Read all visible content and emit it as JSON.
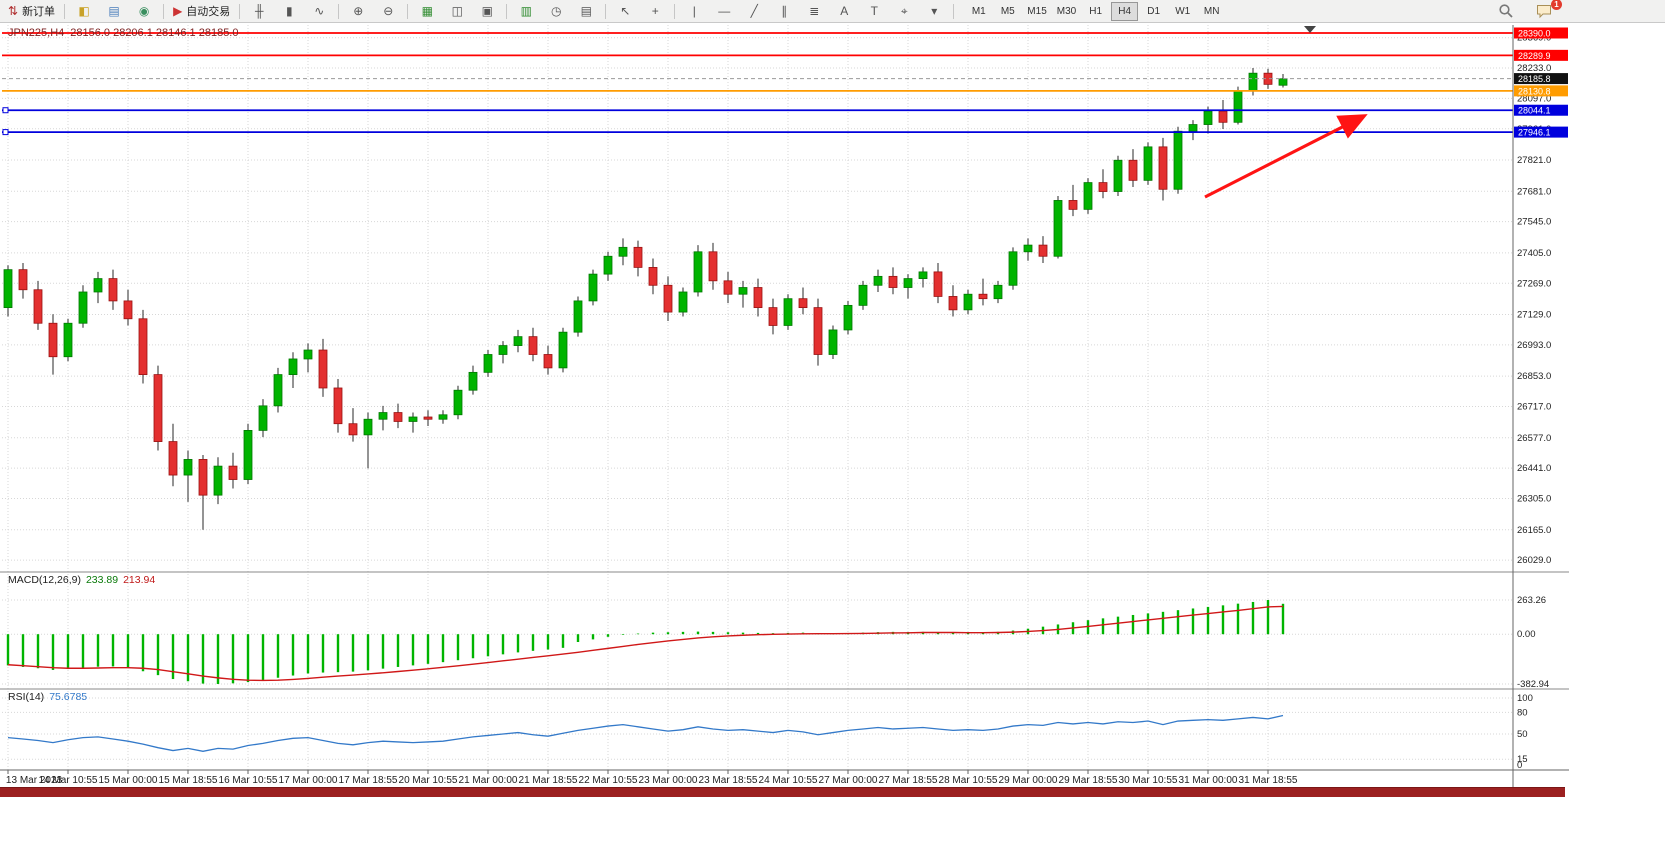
{
  "toolbar": {
    "icon_groups": [
      {
        "items": [
          {
            "name": "new-order-button",
            "label": "新订单",
            "glyph": "⇅",
            "glyph_color": "#b03030"
          }
        ]
      },
      {
        "items": [
          {
            "name": "market-watch-button",
            "glyph": "◧",
            "glyph_color": "#c9a227"
          },
          {
            "name": "data-window-button",
            "glyph": "▤",
            "glyph_color": "#4a7ebb"
          },
          {
            "name": "navigator-button",
            "glyph": "◉",
            "glyph_color": "#3a8f5f"
          }
        ]
      },
      {
        "items": [
          {
            "name": "auto-trading-button",
            "label": "自动交易",
            "glyph": "▶",
            "glyph_color": "#cc3333"
          }
        ]
      },
      {
        "items": [
          {
            "name": "bar-chart-type-button",
            "glyph": "╫"
          },
          {
            "name": "candlestick-type-button",
            "glyph": "▮"
          },
          {
            "name": "line-chart-type-button",
            "glyph": "∿"
          }
        ]
      },
      {
        "items": [
          {
            "name": "zoom-in-button",
            "glyph": "⊕"
          },
          {
            "name": "zoom-out-button",
            "glyph": "⊖"
          }
        ]
      },
      {
        "items": [
          {
            "name": "tile-windows-button",
            "glyph": "▦",
            "glyph_color": "#2e8b2e"
          },
          {
            "name": "cascade-windows-button",
            "glyph": "◫"
          },
          {
            "name": "arrange-windows-button",
            "glyph": "▣"
          }
        ]
      },
      {
        "items": [
          {
            "name": "new-chart-button",
            "glyph": "▥",
            "glyph_color": "#2e8b2e"
          },
          {
            "name": "history-center-button",
            "glyph": "◷"
          },
          {
            "name": "chart-template-button",
            "glyph": "▤"
          }
        ]
      },
      {
        "items": [
          {
            "name": "cursor-button",
            "glyph": "↖"
          },
          {
            "name": "crosshair-button",
            "glyph": "+"
          }
        ]
      },
      {
        "items": [
          {
            "name": "vertical-line-button",
            "glyph": "|"
          },
          {
            "name": "horizontal-line-button",
            "glyph": "―"
          },
          {
            "name": "trendline-button",
            "glyph": "╱"
          },
          {
            "name": "equidistant-channel-button",
            "glyph": "∥"
          },
          {
            "name": "fibonacci-button",
            "glyph": "≣"
          },
          {
            "name": "text-button",
            "glyph": "A"
          },
          {
            "name": "text-label-button",
            "glyph": "T"
          },
          {
            "name": "arrows-button",
            "glyph": "⌖"
          },
          {
            "name": "objects-dropdown",
            "glyph": "▾"
          }
        ]
      }
    ],
    "timeframes": [
      "M1",
      "M5",
      "M15",
      "M30",
      "H1",
      "H4",
      "D1",
      "W1",
      "MN"
    ],
    "active_timeframe": "H4",
    "notification_count": "1"
  },
  "chart": {
    "symbol_period": "JPN225,H4",
    "ohlc_label": "28156.0 28206.1 28146.1 28185.0",
    "up_color": "#00b400",
    "down_color": "#e33030",
    "grid_prices": [
      "28369.0",
      "28233.0",
      "28097.0",
      "27961.0",
      "27821.0",
      "27681.0",
      "27545.0",
      "27405.0",
      "27269.0",
      "27129.0",
      "26993.0",
      "26853.0",
      "26717.0",
      "26577.0",
      "26441.0",
      "26305.0",
      "26165.0",
      "26029.0"
    ],
    "price_lines": [
      {
        "label": "28390.0",
        "price": 28390.0,
        "color": "#ff0000",
        "kind": "resistance-line"
      },
      {
        "label": "28289.9",
        "price": 28289.9,
        "color": "#ff0000",
        "kind": "resistance-line"
      },
      {
        "label": "28185.8",
        "price": 28185.8,
        "color": "#111111",
        "kind": "bid-price"
      },
      {
        "label": "28130.8",
        "price": 28130.8,
        "color": "#ff9c00",
        "kind": "support-line"
      },
      {
        "label": "28044.1",
        "price": 28044.1,
        "color": "#0000dd",
        "kind": "support-line",
        "handles": true
      },
      {
        "label": "27946.1",
        "price": 27946.1,
        "color": "#0000dd",
        "kind": "support-line",
        "handles": true
      }
    ],
    "time_labels": [
      "13 Mar 2023",
      "14 Mar 10:55",
      "15 Mar 00:00",
      "15 Mar 18:55",
      "16 Mar 10:55",
      "17 Mar 00:00",
      "17 Mar 18:55",
      "20 Mar 10:55",
      "21 Mar 00:00",
      "21 Mar 18:55",
      "22 Mar 10:55",
      "23 Mar 00:00",
      "23 Mar 18:55",
      "24 Mar 10:55",
      "27 Mar 00:00",
      "27 Mar 18:55",
      "28 Mar 10:55",
      "29 Mar 00:00",
      "29 Mar 18:55",
      "30 Mar 10:55",
      "31 Mar 00:00",
      "31 Mar 18:55"
    ],
    "candles": [
      [
        27160,
        27350,
        27120,
        27330
      ],
      [
        27330,
        27360,
        27200,
        27240
      ],
      [
        27240,
        27280,
        27060,
        27090
      ],
      [
        27090,
        27130,
        26860,
        26940
      ],
      [
        26940,
        27110,
        26920,
        27090
      ],
      [
        27090,
        27260,
        27070,
        27230
      ],
      [
        27230,
        27320,
        27180,
        27290
      ],
      [
        27290,
        27330,
        27150,
        27190
      ],
      [
        27190,
        27240,
        27080,
        27110
      ],
      [
        27110,
        27150,
        26820,
        26860
      ],
      [
        26860,
        26900,
        26520,
        26560
      ],
      [
        26560,
        26640,
        26360,
        26410
      ],
      [
        26410,
        26520,
        26290,
        26480
      ],
      [
        26480,
        26500,
        26165,
        26320
      ],
      [
        26320,
        26490,
        26280,
        26450
      ],
      [
        26450,
        26510,
        26350,
        26390
      ],
      [
        26390,
        26640,
        26370,
        26610
      ],
      [
        26610,
        26750,
        26580,
        26720
      ],
      [
        26720,
        26890,
        26690,
        26860
      ],
      [
        26860,
        26960,
        26800,
        26930
      ],
      [
        26930,
        27000,
        26870,
        26970
      ],
      [
        26970,
        27020,
        26760,
        26800
      ],
      [
        26800,
        26840,
        26600,
        26640
      ],
      [
        26640,
        26710,
        26560,
        26590
      ],
      [
        26590,
        26690,
        26440,
        26660
      ],
      [
        26660,
        26720,
        26610,
        26690
      ],
      [
        26690,
        26730,
        26620,
        26650
      ],
      [
        26650,
        26690,
        26600,
        26670
      ],
      [
        26670,
        26700,
        26630,
        26660
      ],
      [
        26660,
        26700,
        26640,
        26680
      ],
      [
        26680,
        26810,
        26660,
        26790
      ],
      [
        26790,
        26900,
        26770,
        26870
      ],
      [
        26870,
        26970,
        26850,
        26950
      ],
      [
        26950,
        27010,
        26910,
        26990
      ],
      [
        26990,
        27060,
        26960,
        27030
      ],
      [
        27030,
        27070,
        26920,
        26950
      ],
      [
        26950,
        26990,
        26860,
        26890
      ],
      [
        26890,
        27070,
        26870,
        27050
      ],
      [
        27050,
        27210,
        27030,
        27190
      ],
      [
        27190,
        27330,
        27170,
        27310
      ],
      [
        27310,
        27410,
        27280,
        27390
      ],
      [
        27390,
        27470,
        27350,
        27430
      ],
      [
        27430,
        27460,
        27300,
        27340
      ],
      [
        27340,
        27380,
        27220,
        27260
      ],
      [
        27260,
        27300,
        27100,
        27140
      ],
      [
        27140,
        27250,
        27120,
        27230
      ],
      [
        27230,
        27440,
        27210,
        27410
      ],
      [
        27410,
        27450,
        27240,
        27280
      ],
      [
        27280,
        27320,
        27180,
        27220
      ],
      [
        27220,
        27280,
        27160,
        27250
      ],
      [
        27250,
        27290,
        27120,
        27160
      ],
      [
        27160,
        27200,
        27040,
        27080
      ],
      [
        27080,
        27220,
        27060,
        27200
      ],
      [
        27200,
        27250,
        27130,
        27160
      ],
      [
        27160,
        27200,
        26900,
        26950
      ],
      [
        26950,
        27080,
        26930,
        27060
      ],
      [
        27060,
        27190,
        27040,
        27170
      ],
      [
        27170,
        27280,
        27150,
        27260
      ],
      [
        27260,
        27330,
        27230,
        27300
      ],
      [
        27300,
        27340,
        27220,
        27250
      ],
      [
        27250,
        27310,
        27200,
        27290
      ],
      [
        27290,
        27340,
        27250,
        27320
      ],
      [
        27320,
        27360,
        27180,
        27210
      ],
      [
        27210,
        27260,
        27120,
        27150
      ],
      [
        27150,
        27240,
        27130,
        27220
      ],
      [
        27220,
        27290,
        27170,
        27200
      ],
      [
        27200,
        27280,
        27180,
        27260
      ],
      [
        27260,
        27430,
        27240,
        27410
      ],
      [
        27410,
        27470,
        27370,
        27440
      ],
      [
        27440,
        27480,
        27360,
        27390
      ],
      [
        27390,
        27660,
        27380,
        27640
      ],
      [
        27640,
        27710,
        27570,
        27600
      ],
      [
        27600,
        27740,
        27580,
        27720
      ],
      [
        27720,
        27780,
        27650,
        27680
      ],
      [
        27680,
        27840,
        27660,
        27820
      ],
      [
        27820,
        27870,
        27700,
        27730
      ],
      [
        27730,
        27900,
        27710,
        27880
      ],
      [
        27880,
        27920,
        27640,
        27690
      ],
      [
        27690,
        27970,
        27670,
        27950
      ],
      [
        27950,
        28000,
        27910,
        27980
      ],
      [
        27980,
        28060,
        27940,
        28040
      ],
      [
        28040,
        28090,
        27960,
        27990
      ],
      [
        27990,
        28150,
        27980,
        28130
      ],
      [
        28130,
        28233,
        28110,
        28210
      ],
      [
        28210,
        28230,
        28140,
        28160
      ],
      [
        28156,
        28206.1,
        28146.1,
        28185
      ]
    ]
  },
  "macd": {
    "label": "MACD(12,26,9)",
    "value_main": "233.89",
    "value_signal": "213.94",
    "axis_labels": [
      "263.26",
      "0.00",
      "-382.94"
    ],
    "axis_values": [
      263.26,
      0,
      -382.94
    ],
    "hist_color": "#00b400",
    "signal_color": "#d01818",
    "histogram": [
      -240,
      -252,
      -262,
      -275,
      -268,
      -258,
      -250,
      -248,
      -260,
      -285,
      -315,
      -345,
      -362,
      -380,
      -382.94,
      -378,
      -368,
      -352,
      -335,
      -318,
      -302,
      -295,
      -292,
      -288,
      -278,
      -265,
      -252,
      -240,
      -228,
      -215,
      -200,
      -185,
      -170,
      -155,
      -140,
      -128,
      -118,
      -105,
      -60,
      -40,
      -20,
      -5,
      5,
      12,
      15,
      18,
      20,
      18,
      15,
      12,
      10,
      8,
      10,
      12,
      8,
      5,
      8,
      12,
      16,
      18,
      16,
      18,
      16,
      12,
      10,
      12,
      18,
      28,
      42,
      58,
      75,
      92,
      108,
      122,
      135,
      148,
      160,
      172,
      185,
      198,
      210,
      222,
      235,
      248,
      263.26,
      233.89
    ],
    "signal": [
      -235,
      -242,
      -250,
      -258,
      -262,
      -262,
      -260,
      -258,
      -258,
      -262,
      -272,
      -288,
      -305,
      -322,
      -336,
      -347,
      -354,
      -356,
      -354,
      -348,
      -340,
      -331,
      -322,
      -314,
      -306,
      -297,
      -287,
      -277,
      -266,
      -255,
      -243,
      -231,
      -218,
      -205,
      -192,
      -179,
      -166,
      -153,
      -139,
      -124,
      -109,
      -94,
      -79,
      -65,
      -52,
      -40,
      -29,
      -20,
      -13,
      -8,
      -4,
      -1,
      1,
      3,
      4,
      4,
      5,
      6,
      8,
      10,
      11,
      13,
      13,
      13,
      12,
      12,
      13,
      16,
      21,
      28,
      37,
      48,
      60,
      72,
      85,
      97,
      110,
      122,
      135,
      147,
      159,
      171,
      183,
      196,
      210,
      213.94
    ]
  },
  "rsi": {
    "label": "RSI(14)",
    "value": "75.6785",
    "axis_labels": [
      "100",
      "80",
      "50",
      "15",
      "0"
    ],
    "axis_values": [
      100,
      80,
      50,
      15,
      0
    ],
    "line_color": "#3379c9",
    "values": [
      45,
      43,
      41,
      38,
      42,
      45,
      46,
      43,
      40,
      36,
      31,
      27,
      30,
      26,
      30,
      29,
      34,
      37,
      41,
      44,
      45,
      41,
      37,
      35,
      38,
      40,
      39,
      38,
      39,
      40,
      43,
      46,
      48,
      50,
      52,
      49,
      47,
      51,
      55,
      58,
      61,
      63,
      60,
      57,
      54,
      56,
      60,
      57,
      55,
      56,
      54,
      52,
      55,
      53,
      49,
      52,
      55,
      57,
      59,
      57,
      58,
      59,
      57,
      55,
      56,
      55,
      57,
      61,
      63,
      62,
      66,
      64,
      66,
      64,
      67,
      66,
      68,
      63,
      68,
      69,
      70,
      69,
      71,
      73,
      71,
      75.6785
    ]
  },
  "annotation": {
    "arrow_color": "#ff1414"
  }
}
